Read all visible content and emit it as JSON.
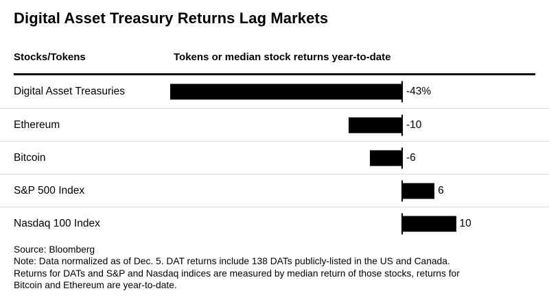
{
  "title": "Digital Asset Treasury Returns Lag Markets",
  "columns": {
    "left": "Stocks/Tokens",
    "right": "Tokens or median stock returns year-to-date"
  },
  "chart_data": {
    "type": "bar",
    "orientation": "horizontal",
    "title": "Digital Asset Treasury Returns Lag Markets",
    "xlabel": "Tokens or median stock returns year-to-date",
    "categories": [
      "Digital Asset Treasuries",
      "Ethereum",
      "Bitcoin",
      "S&P 500 Index",
      "Nasdaq 100 Index"
    ],
    "values": [
      -43,
      -10,
      -6,
      6,
      10
    ],
    "value_labels": [
      "-43%",
      "-10",
      "-6",
      "6",
      "10"
    ],
    "unit": "percent",
    "xlim": [
      -43,
      25
    ],
    "grid": false,
    "legend": false,
    "zero_axis_line": true,
    "colors": {
      "bar": "#000000",
      "separator": "#dcdcdc",
      "background": "#ffffff",
      "text": "#000000"
    }
  },
  "footer": {
    "lines": [
      "Source: Bloomberg",
      "Note: Data normalized as of Dec. 5. DAT returns include 138 DATs publicly-listed in the US and Canada.",
      "Returns for DATs and S&P and Nasdaq indices are measured by median return of those stocks, returns for",
      "Bitcoin and Ethereum are year-to-date."
    ]
  }
}
